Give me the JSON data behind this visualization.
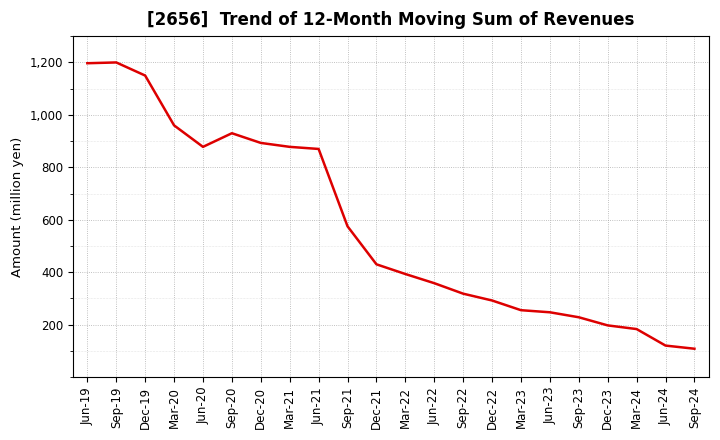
{
  "title": "[2656]  Trend of 12-Month Moving Sum of Revenues",
  "ylabel": "Amount (million yen)",
  "line_color": "#dd0000",
  "background_color": "#ffffff",
  "grid_color": "#999999",
  "title_fontsize": 12,
  "label_fontsize": 9.5,
  "tick_fontsize": 8.5,
  "x_labels": [
    "Jun-19",
    "Sep-19",
    "Dec-19",
    "Mar-20",
    "Jun-20",
    "Sep-20",
    "Dec-20",
    "Mar-21",
    "Jun-21",
    "Sep-21",
    "Dec-21",
    "Mar-22",
    "Jun-22",
    "Sep-22",
    "Dec-22",
    "Mar-23",
    "Jun-23",
    "Sep-23",
    "Dec-23",
    "Mar-24",
    "Jun-24",
    "Sep-24"
  ],
  "y_values": [
    1197,
    1200,
    1150,
    960,
    878,
    930,
    893,
    878,
    870,
    575,
    430,
    393,
    358,
    318,
    292,
    255,
    247,
    228,
    197,
    183,
    120,
    108
  ],
  "ylim": [
    0,
    1300
  ],
  "yticks": [
    200,
    400,
    600,
    800,
    1000,
    1200
  ],
  "ytick_labels": [
    "200",
    "400",
    "600",
    "800",
    "1,000",
    "1,200"
  ]
}
